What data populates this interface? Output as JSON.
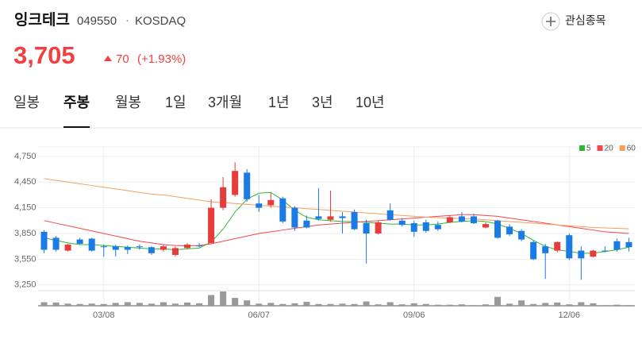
{
  "header": {
    "title": "잉크테크",
    "code": "049550",
    "separator": "·",
    "market": "KOSDAQ",
    "price": "3,705",
    "change": "70",
    "change_pct": "(+1.93%)",
    "watch_button": "관심종목"
  },
  "tabs": [
    "일봉",
    "주봉",
    "월봉",
    "1일",
    "3개월",
    "1년",
    "3년",
    "10년"
  ],
  "active_tab": 1,
  "chart_data": {
    "type": "candlestick",
    "categories": [
      null,
      null,
      null,
      null,
      null,
      "03/08",
      null,
      null,
      null,
      null,
      null,
      null,
      null,
      null,
      null,
      null,
      null,
      null,
      "06/07",
      null,
      null,
      null,
      null,
      null,
      null,
      null,
      null,
      null,
      null,
      null,
      null,
      "09/06",
      null,
      null,
      null,
      null,
      null,
      null,
      null,
      null,
      null,
      null,
      null,
      null,
      "12/06",
      null,
      null,
      null,
      null,
      null
    ],
    "open": [
      3870,
      3800,
      3650,
      3780,
      3790,
      3700,
      3700,
      3690,
      3700,
      3690,
      3660,
      3600,
      3680,
      3710,
      3740,
      4150,
      4300,
      4560,
      4200,
      4180,
      4260,
      4150,
      4000,
      4050,
      4010,
      4050,
      4100,
      3970,
      3850,
      4120,
      4000,
      3970,
      3980,
      3950,
      3980,
      4050,
      4050,
      3920,
      4000,
      3930,
      3880,
      3750,
      3700,
      3650,
      3830,
      3650,
      3580,
      3650,
      3760,
      3750
    ],
    "high": [
      3890,
      3820,
      3730,
      3800,
      3800,
      3720,
      3720,
      3710,
      3720,
      3700,
      3720,
      3700,
      3740,
      3740,
      4250,
      4510,
      4680,
      4600,
      4300,
      4330,
      4280,
      4170,
      4060,
      4380,
      4350,
      4100,
      4130,
      4010,
      4000,
      4200,
      4030,
      4000,
      4010,
      3990,
      4060,
      4100,
      4080,
      3980,
      4010,
      3960,
      3900,
      3770,
      3730,
      3760,
      3850,
      3700,
      3660,
      3700,
      3790,
      3800
    ],
    "low": [
      3620,
      3640,
      3640,
      3720,
      3640,
      3580,
      3580,
      3610,
      3660,
      3600,
      3640,
      3580,
      3670,
      3690,
      3730,
      4120,
      4280,
      4220,
      4100,
      4150,
      3970,
      3880,
      3910,
      4000,
      3990,
      3850,
      3890,
      3500,
      3840,
      4000,
      3930,
      3810,
      3860,
      3880,
      3970,
      3980,
      3960,
      3910,
      3790,
      3820,
      3760,
      3540,
      3320,
      3630,
      3540,
      3310,
      3570,
      3630,
      3640,
      3640
    ],
    "close": [
      3660,
      3660,
      3720,
      3730,
      3650,
      3690,
      3660,
      3660,
      3690,
      3620,
      3700,
      3680,
      3720,
      3700,
      4150,
      4390,
      4580,
      4250,
      4150,
      4240,
      3990,
      3920,
      3920,
      4020,
      4050,
      4030,
      3900,
      3850,
      3980,
      4010,
      3950,
      3870,
      3880,
      3900,
      4040,
      3990,
      3970,
      3960,
      3800,
      3840,
      3780,
      3550,
      3620,
      3750,
      3560,
      3560,
      3650,
      3640,
      3660,
      3690
    ],
    "volume": [
      10,
      9,
      6,
      5,
      6,
      5,
      8,
      10,
      8,
      6,
      10,
      6,
      9,
      7,
      30,
      40,
      22,
      15,
      6,
      8,
      5,
      7,
      11,
      5,
      5,
      6,
      5,
      12,
      4,
      10,
      4,
      7,
      5,
      3,
      3,
      4,
      2,
      4,
      25,
      6,
      15,
      5,
      8,
      9,
      4,
      10,
      7,
      2,
      3,
      2
    ],
    "volume_color": "#999999",
    "up_color": "#e63c3c",
    "down_color": "#1a7ae6",
    "series": [
      {
        "name": "5",
        "color": "#2db82d",
        "values": [
          3800,
          3770,
          3740,
          3720,
          3720,
          3710,
          3700,
          3690,
          3680,
          3670,
          3670,
          3660,
          3670,
          3680,
          3750,
          3900,
          4100,
          4250,
          4320,
          4330,
          4240,
          4120,
          4040,
          4010,
          4000,
          3990,
          3990,
          3980,
          3970,
          3960,
          3960,
          3950,
          3950,
          3960,
          3980,
          3990,
          4000,
          3990,
          3960,
          3910,
          3850,
          3770,
          3700,
          3660,
          3640,
          3620,
          3620,
          3640,
          3660,
          3690
        ]
      },
      {
        "name": "20",
        "color": "#f0474d",
        "values": [
          4000,
          3970,
          3940,
          3910,
          3880,
          3850,
          3820,
          3790,
          3760,
          3740,
          3720,
          3710,
          3705,
          3710,
          3730,
          3760,
          3790,
          3820,
          3850,
          3870,
          3890,
          3910,
          3930,
          3950,
          3960,
          3970,
          3980,
          3990,
          4000,
          4010,
          4020,
          4030,
          4040,
          4050,
          4060,
          4070,
          4070,
          4060,
          4050,
          4030,
          4010,
          3990,
          3970,
          3950,
          3930,
          3910,
          3890,
          3870,
          3860,
          3850
        ]
      },
      {
        "name": "60",
        "color": "#f5a05a",
        "values": [
          4490,
          4470,
          4450,
          4430,
          4410,
          4390,
          4370,
          4350,
          4330,
          4310,
          4300,
          4280,
          4260,
          4240,
          4220,
          4210,
          4200,
          4190,
          4180,
          4170,
          4160,
          4150,
          4140,
          4130,
          4120,
          4110,
          4100,
          4090,
          4080,
          4070,
          4060,
          4050,
          4040,
          4035,
          4030,
          4025,
          4020,
          4010,
          4000,
          3990,
          3980,
          3970,
          3960,
          3950,
          3940,
          3930,
          3920,
          3915,
          3910,
          3905
        ]
      }
    ],
    "ylim": [
      3220,
      4860
    ],
    "yticks": [
      {
        "value": 3250,
        "label": "3,250"
      },
      {
        "value": 3550,
        "label": "3,550"
      },
      {
        "value": 3850,
        "label": "3,850"
      },
      {
        "value": 4150,
        "label": "4,150"
      },
      {
        "value": 4450,
        "label": "4,450"
      },
      {
        "value": 4750,
        "label": "4,750"
      }
    ],
    "grid": true,
    "legend": "top-right"
  }
}
